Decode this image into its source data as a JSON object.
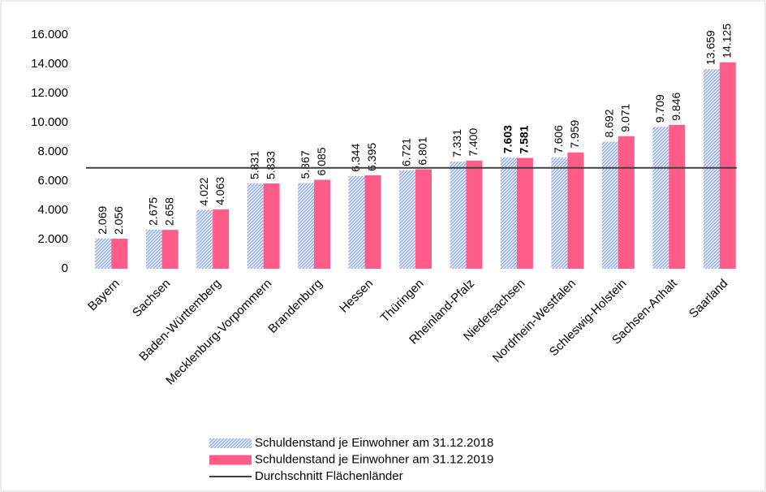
{
  "chart_data": {
    "type": "bar",
    "categories": [
      "Bayern",
      "Sachsen",
      "Baden-Württemberg",
      "Mecklenburg-Vorpommern",
      "Brandenburg",
      "Hessen",
      "Thüringen",
      "Rheinland-Pfalz",
      "Niedersachsen",
      "Nordrhein-Westfalen",
      "Schleswig-Holstein",
      "Sachsen-Anhalt",
      "Saarland"
    ],
    "series": [
      {
        "name": "Schuldenstand je Einwohner am 31.12.2018",
        "color": "#8ea9db",
        "pattern": "hatch",
        "values": [
          2069,
          2675,
          4022,
          5831,
          5867,
          6344,
          6721,
          7331,
          7603,
          7606,
          8692,
          9709,
          13659
        ],
        "value_labels": [
          "2.069",
          "2.675",
          "4.022",
          "5.831",
          "5.867",
          "6.344",
          "6.721",
          "7.331",
          "7.603",
          "7.606",
          "8.692",
          "9.709",
          "13.659"
        ]
      },
      {
        "name": "Schuldenstand je Einwohner am 31.12.2019",
        "color": "#ff5c8a",
        "values": [
          2056,
          2658,
          4063,
          5833,
          6085,
          6395,
          6801,
          7400,
          7581,
          7959,
          9071,
          9846,
          14125
        ],
        "value_labels": [
          "2.056",
          "2.658",
          "4.063",
          "5.833",
          "6.085",
          "6.395",
          "6.801",
          "7.400",
          "7.581",
          "7.959",
          "9.071",
          "9.846",
          "14.125"
        ]
      }
    ],
    "average": {
      "name": "Durchschnitt Flächenländer",
      "value": 6900,
      "color": "#404040"
    },
    "bold_category_index": 8,
    "ylim": [
      0,
      16000
    ],
    "yticks": [
      0,
      {
        "value": 2000,
        "label": "2.000"
      },
      {
        "value": 4000,
        "label": "4.000"
      },
      {
        "value": 6000,
        "label": "6.000"
      },
      {
        "value": 8000,
        "label": "8.000"
      },
      {
        "value": 10000,
        "label": "10.000"
      },
      {
        "value": 12000,
        "label": "12.000"
      },
      {
        "value": 14000,
        "label": "14.000"
      },
      {
        "value": 16000,
        "label": "16.000"
      }
    ],
    "grid": false,
    "legend": "bottom"
  }
}
